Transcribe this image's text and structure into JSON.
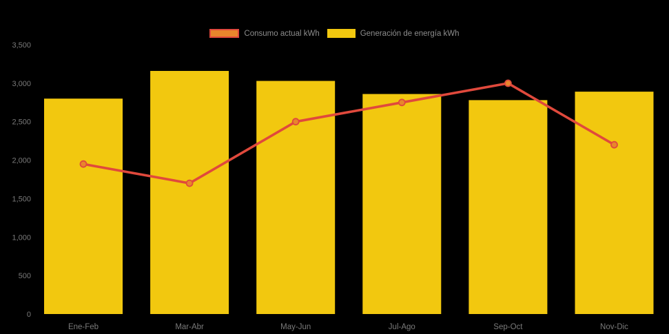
{
  "legend": [
    {
      "label": "Consumo actual kWh",
      "swatch_fill": "#E8862C",
      "swatch_border": "#E0493C"
    },
    {
      "label": "Generación de energía kWh",
      "swatch_fill": "#F2C80F",
      "swatch_border": "#F2C80F"
    }
  ],
  "colors": {
    "background": "#000000",
    "bar": "#F2C80F",
    "line": "#E0493C",
    "marker_fill": "#E8862C",
    "axis_label": "#7a7a7a",
    "legend_text": "#8c8c8c"
  },
  "chart_data": {
    "type": "bar+line combo",
    "title": "",
    "categories": [
      "Ene-Feb",
      "Mar-Abr",
      "May-Jun",
      "Jul-Ago",
      "Sep-Oct",
      "Nov-Dic"
    ],
    "series": [
      {
        "name": "Generación de energía kWh",
        "type": "bar",
        "color": "#F2C80F",
        "values": [
          2800,
          3160,
          3030,
          2860,
          2780,
          2890
        ]
      },
      {
        "name": "Consumo actual kWh",
        "type": "line",
        "color": "#E0493C",
        "marker_fill": "#E8862C",
        "values": [
          1950,
          1700,
          2500,
          2750,
          3000,
          2200
        ]
      }
    ],
    "xlabel": "",
    "ylabel": "",
    "ylim": [
      0,
      3500
    ],
    "ytick_step": 500,
    "ytick_labels": [
      "0",
      "500",
      "1,000",
      "1,500",
      "2,000",
      "2,500",
      "3,000",
      "3,500"
    ],
    "grid": false,
    "legend_position": "top-center",
    "background": "black"
  }
}
